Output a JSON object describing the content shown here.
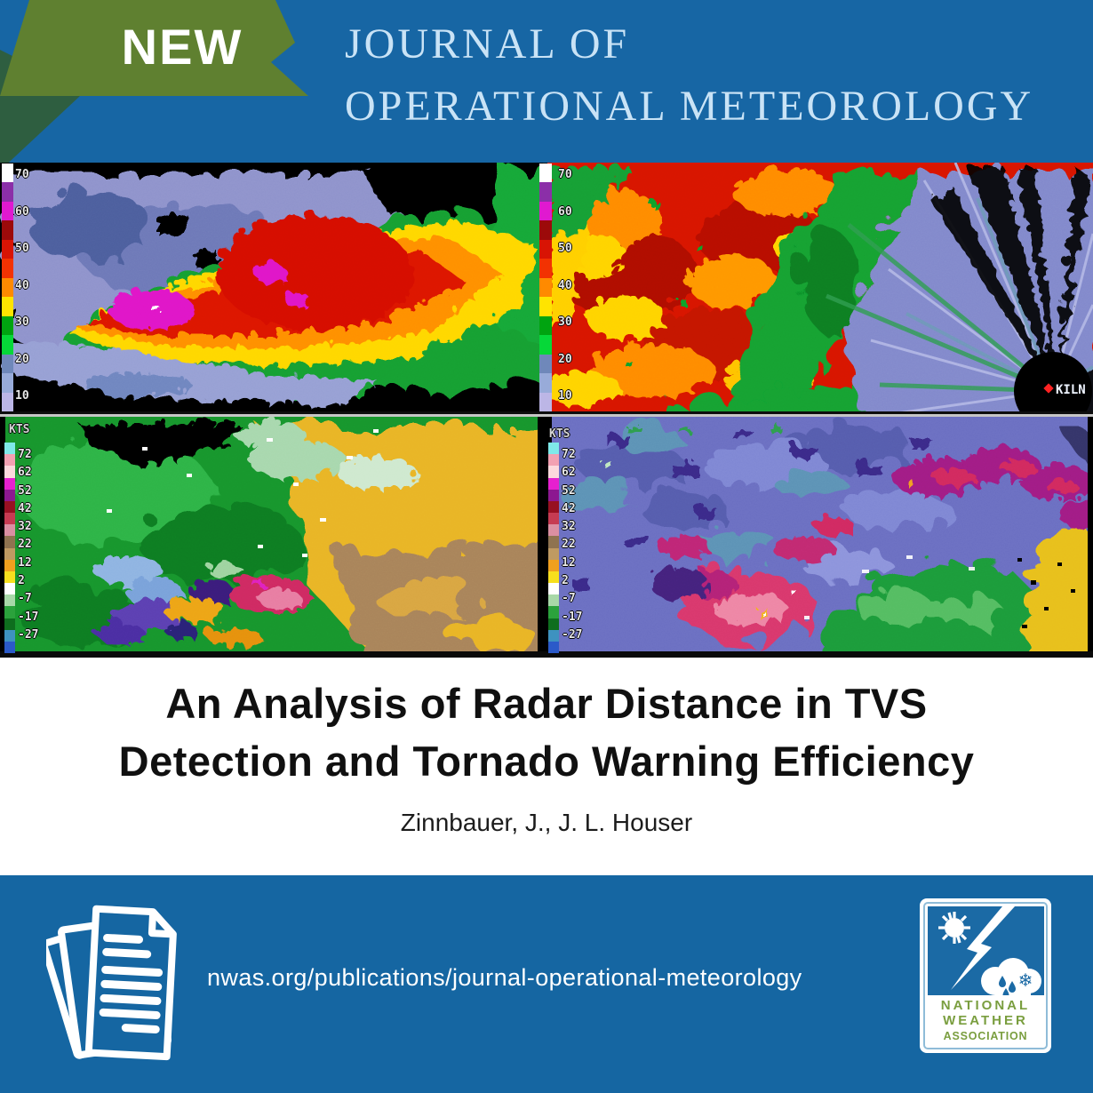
{
  "banner": {
    "badge_label": "NEW",
    "journal_line1": "JOURNAL OF",
    "journal_line2": "OPERATIONAL METEOROLOGY"
  },
  "radar_panels": {
    "top_left": {
      "scale_labels": [
        "70",
        "60",
        "50",
        "40",
        "30",
        "20",
        "10"
      ],
      "scale_colors": [
        "#ffffff",
        "#8b2fa8",
        "#e019d0",
        "#9c0a0a",
        "#d81404",
        "#f23202",
        "#ff8a00",
        "#ffe400",
        "#00a410",
        "#06d838",
        "#6f88ba",
        "#98abd9",
        "#bcb6e6"
      ]
    },
    "top_right": {
      "scale_labels": [
        "70",
        "60",
        "50",
        "40",
        "30",
        "20",
        "10"
      ],
      "scale_colors": [
        "#ffffff",
        "#8b2fa8",
        "#e019d0",
        "#9c0a0a",
        "#d81404",
        "#f23202",
        "#ff8a00",
        "#ffe400",
        "#00a410",
        "#06d838",
        "#6f88ba",
        "#98abd9",
        "#bcb6e6"
      ],
      "station_id": "KILN"
    },
    "bottom_left": {
      "units_label": "KTS",
      "scale_labels": [
        "72",
        "62",
        "52",
        "42",
        "32",
        "22",
        "12",
        "2",
        "-7",
        "-17",
        "-27"
      ],
      "scale_colors": [
        "#7fe9e9",
        "#f2a1b2",
        "#fcd9dd",
        "#e620cf",
        "#8c1890",
        "#971022",
        "#c63b52",
        "#da8fa2",
        "#8f7350",
        "#bf9a62",
        "#f0a01e",
        "#f7df1e",
        "#ffffff",
        "#a8d8a8",
        "#2ba23c",
        "#0e6e1e",
        "#3e92c0",
        "#2b5ac9"
      ]
    },
    "bottom_right": {
      "units_label": "KTS",
      "scale_labels": [
        "72",
        "62",
        "52",
        "42",
        "32",
        "22",
        "12",
        "2",
        "-7",
        "-17",
        "-27"
      ],
      "scale_colors": [
        "#7fe9e9",
        "#f2a1b2",
        "#fcd9dd",
        "#e620cf",
        "#8c1890",
        "#971022",
        "#c63b52",
        "#da8fa2",
        "#8f7350",
        "#bf9a62",
        "#f0a01e",
        "#f7df1e",
        "#ffffff",
        "#a8d8a8",
        "#2ba23c",
        "#0e6e1e",
        "#3e92c0",
        "#2b5ac9"
      ]
    }
  },
  "article": {
    "title_line1": "An Analysis of Radar Distance in TVS",
    "title_line2": "Detection and Tornado Warning Efficiency",
    "authors": "Zinnbauer, J., J. L. Houser"
  },
  "footer": {
    "url": "nwas.org/publications/journal-operational-meteorology",
    "nwa_logo": {
      "line1": "NATIONAL",
      "line2": "WEATHER",
      "line3": "ASSOCIATION"
    }
  },
  "colors": {
    "banner_blue": "#1766a4",
    "footer_blue": "#1566a2",
    "ribbon_green": "#5f8030",
    "ribbon_fold_green": "#2e5e40",
    "journal_text_blue": "#c9e3f6",
    "nwa_logo_green": "#7a9e3f",
    "title_text": "#101010"
  }
}
